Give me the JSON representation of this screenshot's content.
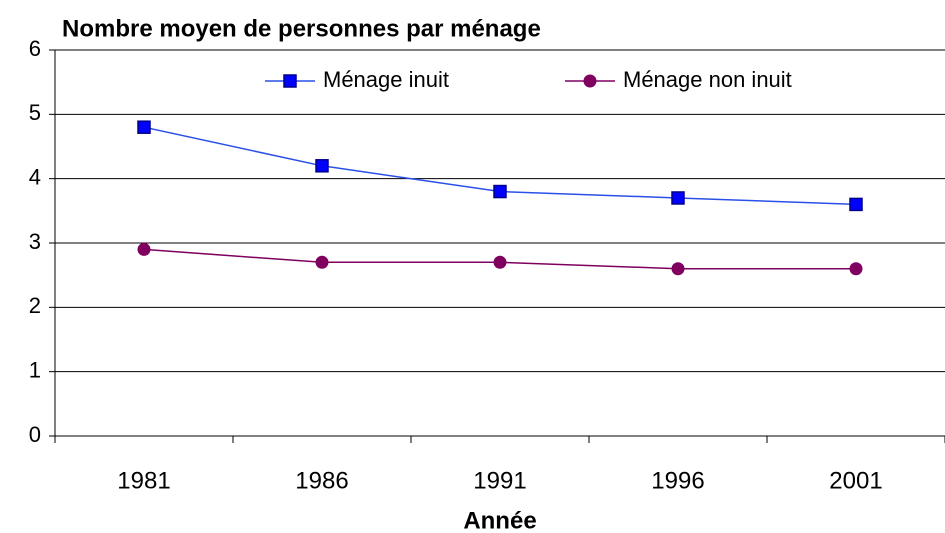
{
  "chart_data": {
    "type": "line",
    "title": "Nombre moyen de personnes par ménage",
    "x_label": "Année",
    "categories": [
      "1981",
      "1986",
      "1991",
      "1996",
      "2001"
    ],
    "series": [
      {
        "name": "Ménage inuit",
        "color": "#2a50e8",
        "marker": "square",
        "values": [
          4.8,
          4.2,
          3.8,
          3.7,
          3.6
        ]
      },
      {
        "name": "Ménage non inuit",
        "color": "#800060",
        "marker": "circle",
        "values": [
          2.9,
          2.7,
          2.7,
          2.6,
          2.6
        ]
      }
    ],
    "ylim": [
      0,
      6
    ],
    "yticks": [
      0,
      1,
      2,
      3,
      4,
      5,
      6
    ],
    "grid": true,
    "legend": "top"
  }
}
